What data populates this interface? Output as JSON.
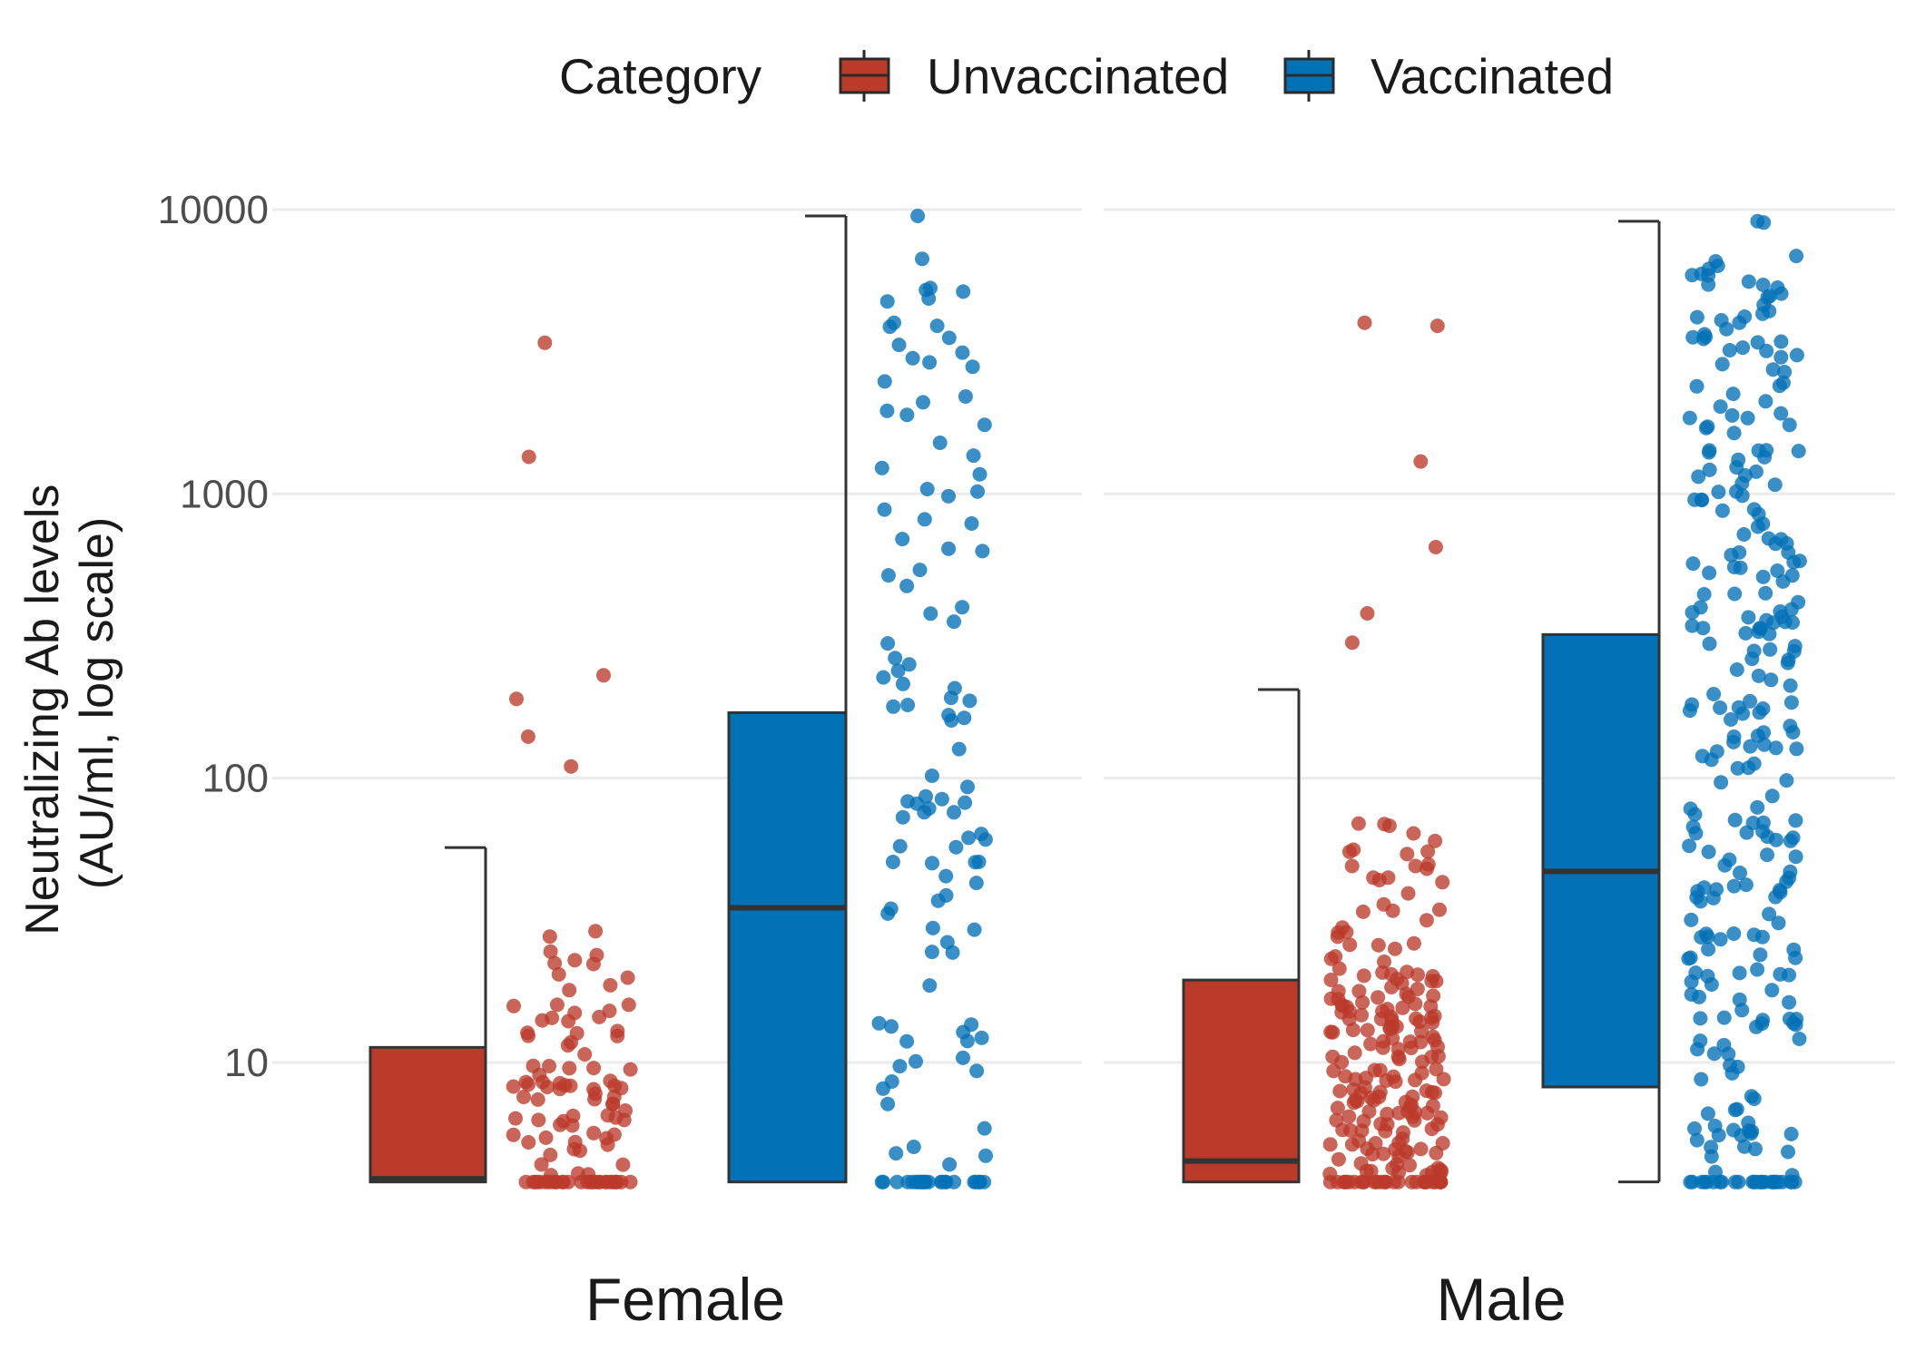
{
  "chart_data": {
    "type": "boxplot",
    "ylabel_line1": "Neutralizing Ab levels",
    "ylabel_line2": "(AU/ml, log scale)",
    "y_scale": "log10",
    "ylim": [
      3.8,
      10000
    ],
    "y_ticks": [
      {
        "value": 10,
        "label": "10"
      },
      {
        "value": 100,
        "label": "100"
      },
      {
        "value": 1000,
        "label": "1000"
      },
      {
        "value": 10000,
        "label": "10000"
      }
    ],
    "grid": "horizontal",
    "legend": {
      "title": "Category",
      "placement": "top",
      "entries": [
        {
          "name": "Unvaccinated",
          "color": "#BB3A2A"
        },
        {
          "name": "Vaccinated",
          "color": "#0271B6"
        }
      ]
    },
    "facets": [
      {
        "name": "Female",
        "groups": [
          {
            "category": "Unvaccinated",
            "min": 3.8,
            "q1": 3.8,
            "median": 3.9,
            "q3": 11.3,
            "max": 57,
            "points_top": [
              3400,
              1350,
              230,
              190,
              140,
              110
            ]
          },
          {
            "category": "Vaccinated",
            "min": 3.8,
            "q1": 3.8,
            "median": 35,
            "q3": 170,
            "max": 9500,
            "points_top": [
              9500,
              5300,
              4000,
              3900,
              3000,
              2900,
              2200
            ]
          }
        ]
      },
      {
        "name": "Male",
        "groups": [
          {
            "category": "Unvaccinated",
            "min": 3.8,
            "q1": 3.8,
            "median": 4.5,
            "q3": 19.5,
            "max": 205,
            "points_top": [
              4000,
              3900,
              1300,
              650,
              380,
              300
            ]
          },
          {
            "category": "Vaccinated",
            "min": 3.8,
            "q1": 8.2,
            "median": 47,
            "q3": 320,
            "max": 9100,
            "points_top": [
              9100,
              9000,
              4300,
              4200,
              4000,
              3800
            ]
          }
        ]
      }
    ]
  }
}
